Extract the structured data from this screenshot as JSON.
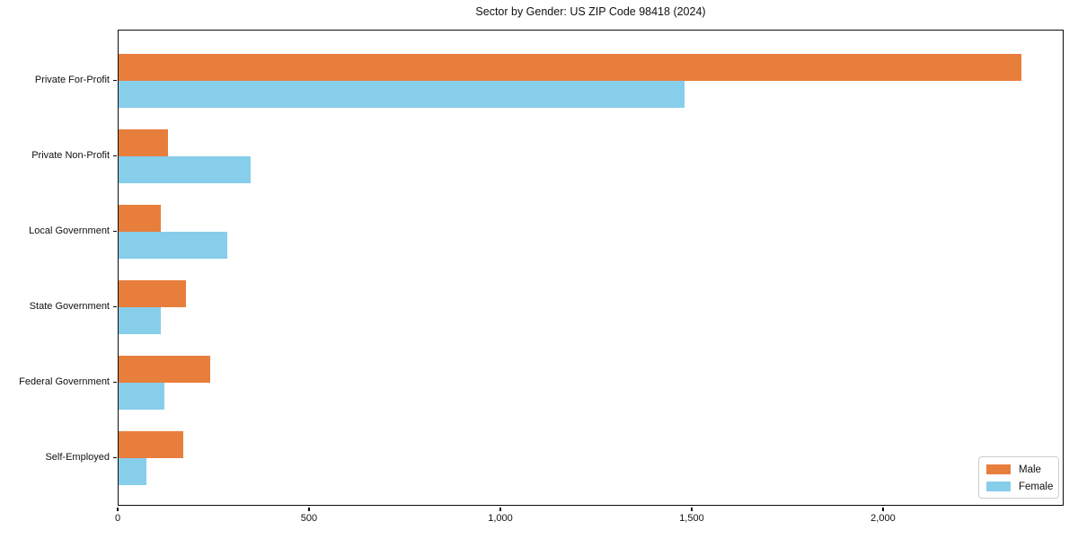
{
  "title": "Sector by Gender: US ZIP Code 98418 (2024)",
  "colors": {
    "male": "#E87E3C",
    "female": "#87CEEB",
    "axis": "#0C0C0C",
    "legend_border": "#CCCCCC",
    "background": "#FFFFFF"
  },
  "chart_data": {
    "type": "bar",
    "orientation": "horizontal",
    "title": "Sector by Gender: US ZIP Code 98418 (2024)",
    "xlabel": "",
    "ylabel": "",
    "categories": [
      "Private For-Profit",
      "Private Non-Profit",
      "Local Government",
      "State Government",
      "Federal Government",
      "Self-Employed"
    ],
    "series": [
      {
        "name": "Male",
        "color": "#E87E3C",
        "values": [
          2360,
          130,
          110,
          175,
          240,
          170
        ]
      },
      {
        "name": "Female",
        "color": "#87CEEB",
        "values": [
          1480,
          345,
          285,
          110,
          120,
          72
        ]
      }
    ],
    "xlim": [
      0,
      2472
    ],
    "x_ticks": [
      0,
      500,
      1000,
      1500,
      2000
    ],
    "x_tick_labels": [
      "0",
      "500",
      "1,000",
      "1,500",
      "2,000"
    ],
    "grid": false,
    "legend_position": "lower right"
  },
  "legend": {
    "items": [
      {
        "label": "Male"
      },
      {
        "label": "Female"
      }
    ]
  }
}
